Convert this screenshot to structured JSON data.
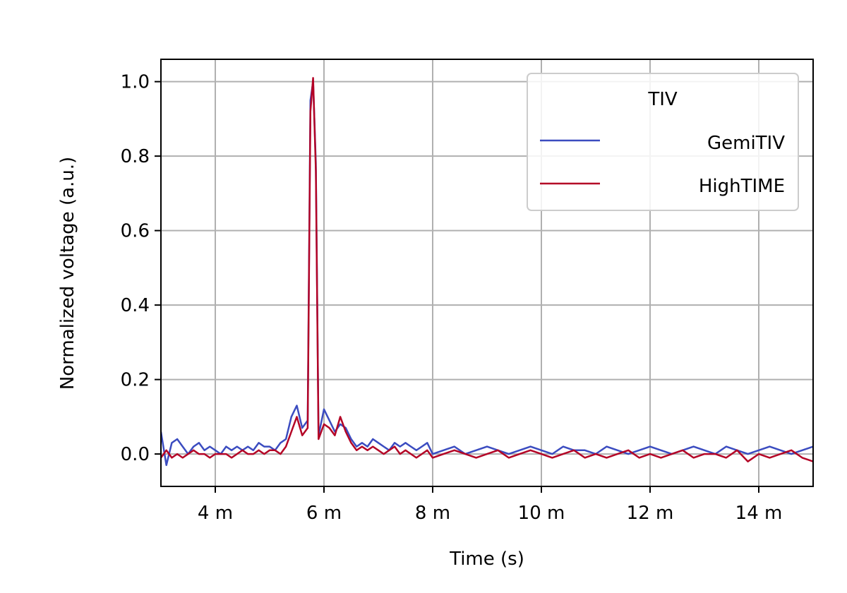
{
  "chart_data": {
    "type": "line",
    "xlabel": "Time (s)",
    "ylabel": "Normalized voltage (a.u.)",
    "xlim": [
      0.003,
      0.015
    ],
    "ylim": [
      -0.087,
      1.06
    ],
    "x_ticks": [
      {
        "value": 0.004,
        "label": "4 m"
      },
      {
        "value": 0.006,
        "label": "6 m"
      },
      {
        "value": 0.008,
        "label": "8 m"
      },
      {
        "value": 0.01,
        "label": "10 m"
      },
      {
        "value": 0.012,
        "label": "12 m"
      },
      {
        "value": 0.014,
        "label": "14 m"
      }
    ],
    "y_ticks": [
      {
        "value": 0.0,
        "label": "0.0"
      },
      {
        "value": 0.2,
        "label": "0.2"
      },
      {
        "value": 0.4,
        "label": "0.4"
      },
      {
        "value": 0.6,
        "label": "0.6"
      },
      {
        "value": 0.8,
        "label": "0.8"
      },
      {
        "value": 1.0,
        "label": "1.0"
      }
    ],
    "grid": true,
    "legend": {
      "title": "TIV",
      "placement": "top-right"
    },
    "series": [
      {
        "name": "GemiTIV",
        "color": "#3b4cc0",
        "x": [
          0.003,
          0.0031,
          0.0032,
          0.0033,
          0.0034,
          0.0035,
          0.0036,
          0.0037,
          0.0038,
          0.0039,
          0.004,
          0.0041,
          0.0042,
          0.0043,
          0.0044,
          0.0045,
          0.0046,
          0.0047,
          0.0048,
          0.0049,
          0.005,
          0.0051,
          0.0052,
          0.0053,
          0.0054,
          0.0055,
          0.0056,
          0.0057,
          0.00575,
          0.0058,
          0.00585,
          0.0059,
          0.006,
          0.0061,
          0.0062,
          0.0063,
          0.0064,
          0.0065,
          0.0066,
          0.0067,
          0.0068,
          0.0069,
          0.007,
          0.0071,
          0.0072,
          0.0073,
          0.0074,
          0.0075,
          0.0076,
          0.0077,
          0.0078,
          0.0079,
          0.008,
          0.0082,
          0.0084,
          0.0086,
          0.0088,
          0.009,
          0.0092,
          0.0094,
          0.0096,
          0.0098,
          0.01,
          0.0102,
          0.0104,
          0.0106,
          0.0108,
          0.011,
          0.0112,
          0.0114,
          0.0116,
          0.0118,
          0.012,
          0.0122,
          0.0124,
          0.0126,
          0.0128,
          0.013,
          0.0132,
          0.0134,
          0.0136,
          0.0138,
          0.014,
          0.0142,
          0.0144,
          0.0146,
          0.0148,
          0.015
        ],
        "y": [
          0.06,
          -0.03,
          0.03,
          0.04,
          0.02,
          0.0,
          0.02,
          0.03,
          0.01,
          0.02,
          0.01,
          0.0,
          0.02,
          0.01,
          0.02,
          0.01,
          0.02,
          0.01,
          0.03,
          0.02,
          0.02,
          0.01,
          0.03,
          0.04,
          0.1,
          0.13,
          0.07,
          0.09,
          0.95,
          1.0,
          0.78,
          0.05,
          0.12,
          0.09,
          0.06,
          0.08,
          0.07,
          0.04,
          0.02,
          0.03,
          0.02,
          0.04,
          0.03,
          0.02,
          0.01,
          0.03,
          0.02,
          0.03,
          0.02,
          0.01,
          0.02,
          0.03,
          0.0,
          0.01,
          0.02,
          0.0,
          0.01,
          0.02,
          0.01,
          0.0,
          0.01,
          0.02,
          0.01,
          0.0,
          0.02,
          0.01,
          0.01,
          0.0,
          0.02,
          0.01,
          0.0,
          0.01,
          0.02,
          0.01,
          0.0,
          0.01,
          0.02,
          0.01,
          0.0,
          0.02,
          0.01,
          0.0,
          0.01,
          0.02,
          0.01,
          0.0,
          0.01,
          0.02
        ]
      },
      {
        "name": "HighTIME",
        "color": "#b40426",
        "x": [
          0.003,
          0.0031,
          0.0032,
          0.0033,
          0.0034,
          0.0035,
          0.0036,
          0.0037,
          0.0038,
          0.0039,
          0.004,
          0.0041,
          0.0042,
          0.0043,
          0.0044,
          0.0045,
          0.0046,
          0.0047,
          0.0048,
          0.0049,
          0.005,
          0.0051,
          0.0052,
          0.0053,
          0.0054,
          0.0055,
          0.0056,
          0.0057,
          0.00575,
          0.0058,
          0.00585,
          0.0059,
          0.006,
          0.0061,
          0.0062,
          0.0063,
          0.0064,
          0.0065,
          0.0066,
          0.0067,
          0.0068,
          0.0069,
          0.007,
          0.0071,
          0.0072,
          0.0073,
          0.0074,
          0.0075,
          0.0076,
          0.0077,
          0.0078,
          0.0079,
          0.008,
          0.0082,
          0.0084,
          0.0086,
          0.0088,
          0.009,
          0.0092,
          0.0094,
          0.0096,
          0.0098,
          0.01,
          0.0102,
          0.0104,
          0.0106,
          0.0108,
          0.011,
          0.0112,
          0.0114,
          0.0116,
          0.0118,
          0.012,
          0.0122,
          0.0124,
          0.0126,
          0.0128,
          0.013,
          0.0132,
          0.0134,
          0.0136,
          0.0138,
          0.014,
          0.0142,
          0.0144,
          0.0146,
          0.0148,
          0.015
        ],
        "y": [
          -0.01,
          0.01,
          -0.01,
          0.0,
          -0.01,
          0.0,
          0.01,
          0.0,
          0.0,
          -0.01,
          0.0,
          0.0,
          0.0,
          -0.01,
          0.0,
          0.01,
          0.0,
          0.0,
          0.01,
          0.0,
          0.01,
          0.01,
          0.0,
          0.02,
          0.06,
          0.1,
          0.05,
          0.07,
          0.92,
          1.01,
          0.76,
          0.04,
          0.08,
          0.07,
          0.05,
          0.1,
          0.06,
          0.03,
          0.01,
          0.02,
          0.01,
          0.02,
          0.01,
          0.0,
          0.01,
          0.02,
          0.0,
          0.01,
          0.0,
          -0.01,
          0.0,
          0.01,
          -0.01,
          0.0,
          0.01,
          0.0,
          -0.01,
          0.0,
          0.01,
          -0.01,
          0.0,
          0.01,
          0.0,
          -0.01,
          0.0,
          0.01,
          -0.01,
          0.0,
          -0.01,
          0.0,
          0.01,
          -0.01,
          0.0,
          -0.01,
          0.0,
          0.01,
          -0.01,
          0.0,
          0.0,
          -0.01,
          0.01,
          -0.02,
          0.0,
          -0.01,
          0.0,
          0.01,
          -0.01,
          -0.02
        ]
      }
    ]
  }
}
